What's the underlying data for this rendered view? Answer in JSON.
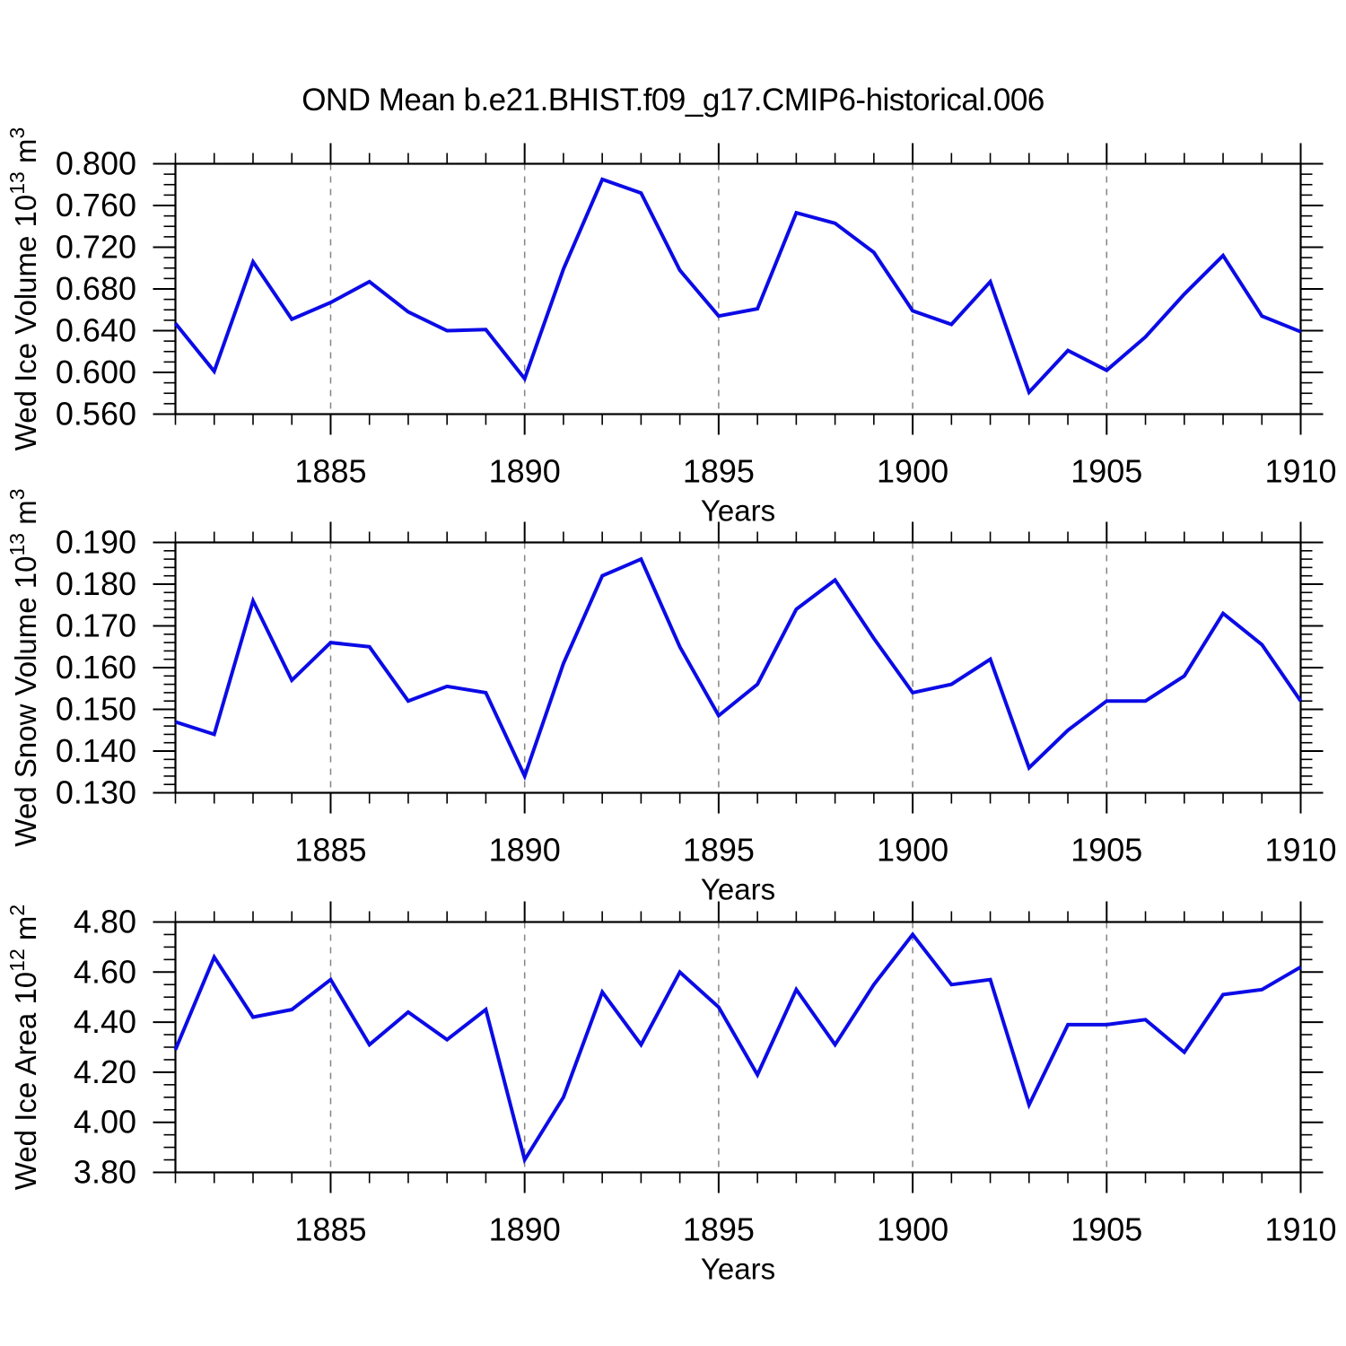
{
  "title": "OND Mean b.e21.BHIST.f09_g17.CMIP6-historical.006",
  "x_axis": {
    "label": "Years",
    "range": [
      1881,
      1910
    ],
    "major_tick_years": [
      1885,
      1890,
      1895,
      1900,
      1905,
      1910
    ],
    "gridline_years": [
      1885,
      1890,
      1895,
      1900,
      1905
    ]
  },
  "style": {
    "line_color": "#0b0be6",
    "grid_color": "#848484",
    "axis_color": "#000000",
    "text_color": "#000000"
  },
  "chart_data": [
    {
      "type": "line",
      "name": "wed-ice-volume",
      "ylabel_text": "Wed Ice Volume 10^13 m^3",
      "ylabel_parts": [
        {
          "text": "Wed Ice Volume 10",
          "sup": false
        },
        {
          "text": "13",
          "sup": true
        },
        {
          "text": " m",
          "sup": false
        },
        {
          "text": "3",
          "sup": true
        }
      ],
      "xlabel": "Years",
      "ylim": [
        0.56,
        0.8
      ],
      "ytick_step": 0.04,
      "yminor_step": 0.01,
      "ydecimals": 3,
      "ytick_labels": [
        "0.560",
        "0.600",
        "0.640",
        "0.680",
        "0.720",
        "0.760",
        "0.800"
      ],
      "x": [
        1881,
        1882,
        1883,
        1884,
        1885,
        1886,
        1887,
        1888,
        1889,
        1890,
        1891,
        1892,
        1893,
        1894,
        1895,
        1896,
        1897,
        1898,
        1899,
        1900,
        1901,
        1902,
        1903,
        1904,
        1905,
        1906,
        1907,
        1908,
        1909,
        1910
      ],
      "values": [
        0.647,
        0.601,
        0.706,
        0.651,
        0.667,
        0.687,
        0.658,
        0.64,
        0.641,
        0.594,
        0.699,
        0.785,
        0.772,
        0.698,
        0.654,
        0.661,
        0.753,
        0.743,
        0.715,
        0.659,
        0.646,
        0.687,
        0.581,
        0.621,
        0.602,
        0.634,
        0.675,
        0.712,
        0.654,
        0.639
      ]
    },
    {
      "type": "line",
      "name": "wed-snow-volume",
      "ylabel_text": "Wed Snow Volume 10^13 m^3",
      "ylabel_parts": [
        {
          "text": "Wed Snow Volume 10",
          "sup": false
        },
        {
          "text": "13",
          "sup": true
        },
        {
          "text": " m",
          "sup": false
        },
        {
          "text": "3",
          "sup": true
        }
      ],
      "xlabel": "Years",
      "ylim": [
        0.13,
        0.19
      ],
      "ytick_step": 0.01,
      "yminor_step": 0.002,
      "ydecimals": 3,
      "ytick_labels": [
        "0.130",
        "0.140",
        "0.150",
        "0.160",
        "0.170",
        "0.180",
        "0.190"
      ],
      "x": [
        1881,
        1882,
        1883,
        1884,
        1885,
        1886,
        1887,
        1888,
        1889,
        1890,
        1891,
        1892,
        1893,
        1894,
        1895,
        1896,
        1897,
        1898,
        1899,
        1900,
        1901,
        1902,
        1903,
        1904,
        1905,
        1906,
        1907,
        1908,
        1909,
        1910
      ],
      "values": [
        0.147,
        0.144,
        0.176,
        0.157,
        0.166,
        0.165,
        0.152,
        0.1555,
        0.154,
        0.134,
        0.161,
        0.182,
        0.186,
        0.165,
        0.1485,
        0.156,
        0.174,
        0.181,
        0.167,
        0.154,
        0.156,
        0.162,
        0.136,
        0.145,
        0.152,
        0.152,
        0.158,
        0.173,
        0.1655,
        0.152
      ]
    },
    {
      "type": "line",
      "name": "wed-ice-area",
      "ylabel_text": "Wed Ice Area 10^12 m^2",
      "ylabel_parts": [
        {
          "text": "Wed Ice Area 10",
          "sup": false
        },
        {
          "text": "12",
          "sup": true
        },
        {
          "text": " m",
          "sup": false
        },
        {
          "text": "2",
          "sup": true
        }
      ],
      "xlabel": "Years",
      "ylim": [
        3.8,
        4.8
      ],
      "ytick_step": 0.2,
      "yminor_step": 0.05,
      "ydecimals": 2,
      "ytick_labels": [
        "3.80",
        "4.00",
        "4.20",
        "4.40",
        "4.60",
        "4.80"
      ],
      "x": [
        1881,
        1882,
        1883,
        1884,
        1885,
        1886,
        1887,
        1888,
        1889,
        1890,
        1891,
        1892,
        1893,
        1894,
        1895,
        1896,
        1897,
        1898,
        1899,
        1900,
        1901,
        1902,
        1903,
        1904,
        1905,
        1906,
        1907,
        1908,
        1909,
        1910
      ],
      "values": [
        4.29,
        4.66,
        4.42,
        4.45,
        4.57,
        4.31,
        4.44,
        4.33,
        4.45,
        3.85,
        4.1,
        4.52,
        4.31,
        4.6,
        4.46,
        4.19,
        4.53,
        4.31,
        4.55,
        4.75,
        4.55,
        4.57,
        4.07,
        4.39,
        4.39,
        4.41,
        4.28,
        4.51,
        4.53,
        4.62
      ]
    }
  ]
}
